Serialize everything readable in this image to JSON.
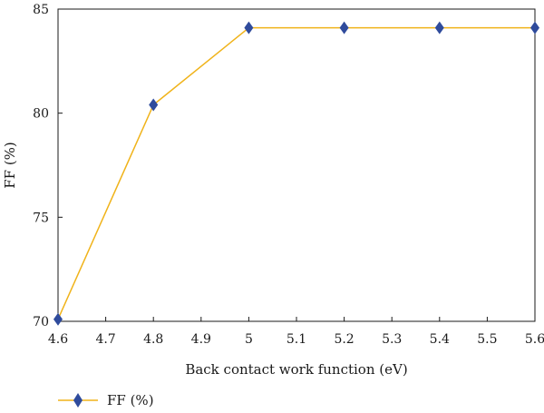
{
  "chart_data": {
    "type": "line",
    "xlabel": "Back contact work function (eV)",
    "ylabel": "FF (%)",
    "x_ticks": [
      "4.6",
      "4.7",
      "4.8",
      "4.9",
      "5",
      "5.1",
      "5.2",
      "5.3",
      "5.4",
      "5.5",
      "5.6"
    ],
    "y_ticks": [
      "70",
      "75",
      "80",
      "85"
    ],
    "xlim": [
      4.6,
      5.6
    ],
    "ylim": [
      70,
      85
    ],
    "grid": false,
    "legend_position": "bottom-left",
    "series": [
      {
        "name": "FF (%)",
        "line_color": "#f0b31a",
        "marker_color": "#2f4b9c",
        "marker": "diamond",
        "x": [
          4.6,
          4.8,
          5.0,
          5.2,
          5.4,
          5.6
        ],
        "y": [
          70.1,
          80.4,
          84.1,
          84.1,
          84.1,
          84.1
        ]
      }
    ]
  }
}
